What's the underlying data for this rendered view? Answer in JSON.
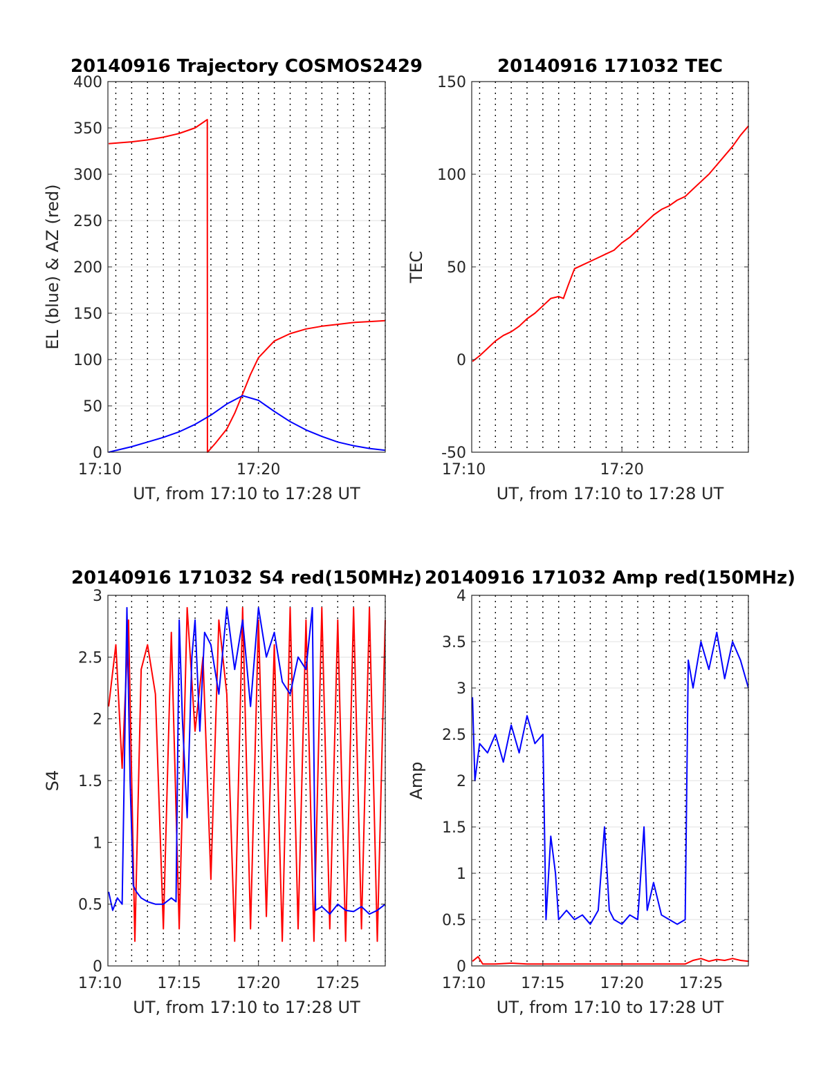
{
  "chart_data": [
    {
      "type": "line",
      "title": "20140916 Trajectory COSMOS2429",
      "xlabel": "UT, from 17:10 to 17:28 UT",
      "ylabel": "EL (blue) & AZ (red)",
      "xlim": [
        10.5,
        28.0
      ],
      "ylim": [
        0,
        400
      ],
      "xticks": [
        10,
        20
      ],
      "xtick_labels": [
        "17:10",
        "17:20"
      ],
      "yticks": [
        0,
        50,
        100,
        150,
        200,
        250,
        300,
        350,
        400
      ],
      "ytick_labels": [
        "0",
        "50",
        "100",
        "150",
        "200",
        "250",
        "300",
        "350",
        "400"
      ],
      "grid": true,
      "series": [
        {
          "color": "#ff0000",
          "x": [
            10.55,
            12.0,
            13.0,
            14.0,
            15.0,
            16.0,
            16.77,
            16.78,
            16.79,
            17.3,
            18.0,
            18.5,
            19.0,
            19.5,
            20.0,
            21.0,
            22.0,
            23.0,
            24.0,
            25.0,
            26.0,
            27.0,
            28.0
          ],
          "values": [
            333,
            335,
            337,
            340,
            344,
            350,
            359,
            0,
            0,
            10,
            25,
            42,
            63,
            84,
            102,
            120,
            128,
            133,
            136,
            138,
            140,
            141,
            142
          ]
        },
        {
          "color": "#0000ff",
          "x": [
            10.55,
            12.0,
            13.0,
            14.0,
            15.0,
            16.0,
            17.0,
            18.0,
            19.0,
            20.0,
            21.0,
            22.0,
            23.0,
            24.0,
            25.0,
            26.0,
            27.0,
            28.0
          ],
          "values": [
            0,
            6,
            11,
            16,
            22,
            30,
            40,
            52,
            61,
            56,
            44,
            33,
            24,
            17,
            11,
            7,
            4,
            2
          ]
        }
      ]
    },
    {
      "type": "line",
      "title": "20140916 171032 TEC",
      "xlabel": "UT, from 17:10 to 17:28 UT",
      "ylabel": "TEC",
      "xlim": [
        10.5,
        28.0
      ],
      "ylim": [
        -50,
        150
      ],
      "xticks": [
        10,
        20
      ],
      "xtick_labels": [
        "17:10",
        "17:20"
      ],
      "yticks": [
        -50,
        0,
        50,
        100,
        150
      ],
      "ytick_labels": [
        "-50",
        "0",
        "50",
        "100",
        "150"
      ],
      "grid": true,
      "series": [
        {
          "color": "#ff0000",
          "x": [
            10.55,
            11.0,
            11.5,
            12.0,
            12.5,
            13.0,
            13.5,
            14.0,
            14.5,
            15.0,
            15.5,
            16.0,
            16.3,
            16.6,
            17.0,
            17.5,
            18.0,
            18.5,
            19.0,
            19.5,
            20.0,
            20.5,
            21.0,
            21.5,
            22.0,
            22.5,
            23.0,
            23.5,
            24.0,
            24.5,
            25.0,
            25.5,
            26.0,
            26.5,
            27.0,
            27.5,
            28.0
          ],
          "values": [
            -1,
            2,
            6,
            10,
            13,
            15,
            18,
            22,
            25,
            29,
            33,
            34,
            33,
            40,
            49,
            51,
            53,
            55,
            57,
            59,
            63,
            66,
            70,
            74,
            78,
            81,
            83,
            86,
            88,
            92,
            96,
            100,
            105,
            110,
            115,
            121,
            126
          ]
        }
      ]
    },
    {
      "type": "line",
      "title": "20140916 171032 S4 red(150MHz)",
      "xlabel": "UT, from 17:10 to 17:28 UT",
      "ylabel": "S4",
      "xlim": [
        10.5,
        28.0
      ],
      "ylim": [
        0,
        3
      ],
      "xticks": [
        10,
        15,
        20,
        25
      ],
      "xtick_labels": [
        "17:10",
        "17:15",
        "17:20",
        "17:25"
      ],
      "yticks": [
        0,
        0.5,
        1,
        1.5,
        2,
        2.5,
        3
      ],
      "ytick_labels": [
        "0",
        "0.5",
        "1",
        "1.5",
        "2",
        "2.5",
        "3"
      ],
      "grid": true,
      "series": [
        {
          "color": "#ff0000",
          "x": [
            10.55,
            11.0,
            11.4,
            11.8,
            12.2,
            12.6,
            13.0,
            13.5,
            14.0,
            14.5,
            15.0,
            15.5,
            16.0,
            16.5,
            17.0,
            17.5,
            18.0,
            18.5,
            19.0,
            19.5,
            20.0,
            20.5,
            21.0,
            21.5,
            22.0,
            22.5,
            23.0,
            23.5,
            24.0,
            24.5,
            25.0,
            25.5,
            26.0,
            26.5,
            27.0,
            27.5,
            28.0
          ],
          "values": [
            2.1,
            2.6,
            1.6,
            2.8,
            0.2,
            2.4,
            2.6,
            2.2,
            0.3,
            2.7,
            0.3,
            2.9,
            1.9,
            2.5,
            0.7,
            2.8,
            2.2,
            0.2,
            2.9,
            0.3,
            2.8,
            0.4,
            2.6,
            0.2,
            2.9,
            0.3,
            2.8,
            0.2,
            2.9,
            0.3,
            2.8,
            0.2,
            2.9,
            0.3,
            2.9,
            0.2,
            2.8
          ]
        },
        {
          "color": "#0000ff",
          "x": [
            10.55,
            10.8,
            11.1,
            11.4,
            11.7,
            11.9,
            12.1,
            12.3,
            12.6,
            13.0,
            13.5,
            14.0,
            14.5,
            14.8,
            15.0,
            15.2,
            15.5,
            15.8,
            16.0,
            16.3,
            16.6,
            17.0,
            17.5,
            18.0,
            18.5,
            19.0,
            19.5,
            20.0,
            20.5,
            21.0,
            21.5,
            22.0,
            22.5,
            23.0,
            23.4,
            23.6,
            24.0,
            24.5,
            25.0,
            25.5,
            26.0,
            26.5,
            27.0,
            27.5,
            28.0
          ],
          "values": [
            0.6,
            0.45,
            0.55,
            0.5,
            2.9,
            1.5,
            0.65,
            0.6,
            0.55,
            0.52,
            0.5,
            0.5,
            0.55,
            0.52,
            2.8,
            2.0,
            1.2,
            2.5,
            2.8,
            1.9,
            2.7,
            2.6,
            2.2,
            2.9,
            2.4,
            2.8,
            2.1,
            2.9,
            2.5,
            2.7,
            2.3,
            2.2,
            2.5,
            2.4,
            2.9,
            0.45,
            0.48,
            0.42,
            0.5,
            0.45,
            0.44,
            0.48,
            0.42,
            0.45,
            0.5
          ]
        }
      ]
    },
    {
      "type": "line",
      "title": "20140916 171032 Amp red(150MHz)",
      "xlabel": "UT, from 17:10 to 17:28 UT",
      "ylabel": "Amp",
      "xlim": [
        10.5,
        28.0
      ],
      "ylim": [
        0,
        4
      ],
      "xticks": [
        10,
        15,
        20,
        25
      ],
      "xtick_labels": [
        "17:10",
        "17:15",
        "17:20",
        "17:25"
      ],
      "yticks": [
        0,
        0.5,
        1,
        1.5,
        2,
        2.5,
        3,
        3.5,
        4
      ],
      "ytick_labels": [
        "0",
        "0.5",
        "1",
        "1.5",
        "2",
        "2.5",
        "3",
        "3.5",
        "4"
      ],
      "grid": true,
      "series": [
        {
          "color": "#0000ff",
          "x": [
            10.55,
            10.7,
            11.0,
            11.5,
            12.0,
            12.5,
            13.0,
            13.5,
            14.0,
            14.5,
            15.0,
            15.2,
            15.5,
            15.8,
            16.0,
            16.5,
            17.0,
            17.5,
            18.0,
            18.5,
            18.9,
            19.2,
            19.5,
            20.0,
            20.5,
            21.0,
            21.4,
            21.6,
            22.0,
            22.5,
            23.0,
            23.5,
            24.0,
            24.2,
            24.5,
            25.0,
            25.5,
            26.0,
            26.5,
            27.0,
            27.5,
            28.0
          ],
          "values": [
            2.9,
            2.0,
            2.4,
            2.3,
            2.5,
            2.2,
            2.6,
            2.3,
            2.7,
            2.4,
            2.5,
            0.5,
            1.4,
            1.0,
            0.5,
            0.6,
            0.5,
            0.55,
            0.45,
            0.6,
            1.5,
            0.6,
            0.5,
            0.45,
            0.55,
            0.5,
            1.5,
            0.6,
            0.9,
            0.55,
            0.5,
            0.45,
            0.5,
            3.3,
            3.0,
            3.5,
            3.2,
            3.6,
            3.1,
            3.5,
            3.3,
            3.0
          ]
        },
        {
          "color": "#ff0000",
          "x": [
            10.55,
            10.9,
            11.2,
            12.0,
            13.0,
            14.0,
            15.0,
            16.0,
            18.0,
            20.0,
            22.0,
            24.0,
            24.5,
            25.0,
            25.5,
            26.0,
            26.5,
            27.0,
            27.5,
            28.0
          ],
          "values": [
            0.05,
            0.1,
            0.02,
            0.02,
            0.03,
            0.02,
            0.02,
            0.02,
            0.02,
            0.02,
            0.02,
            0.02,
            0.06,
            0.08,
            0.05,
            0.07,
            0.06,
            0.08,
            0.06,
            0.05
          ]
        }
      ]
    }
  ]
}
